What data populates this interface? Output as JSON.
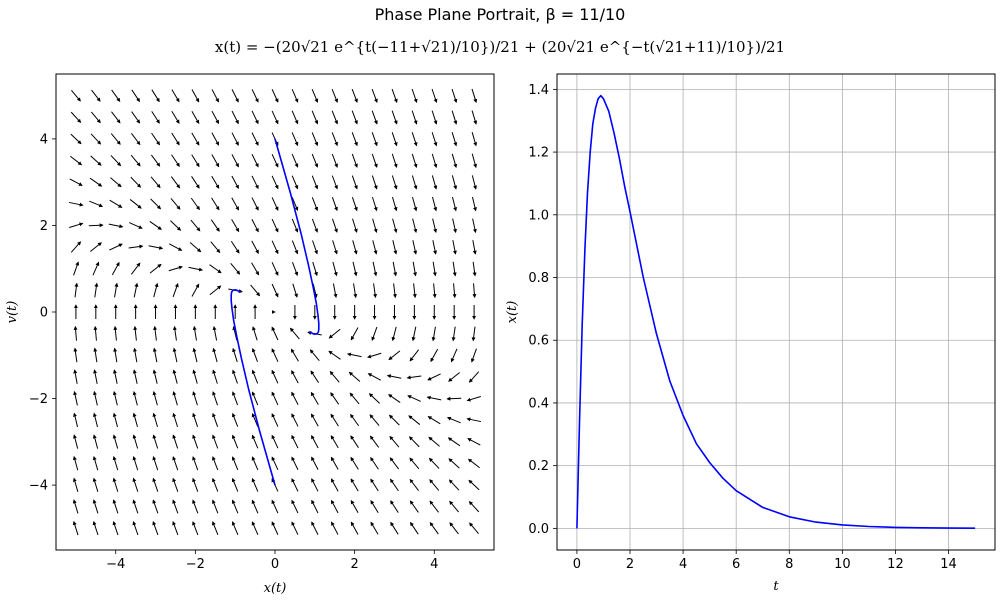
{
  "figure": {
    "title": "Phase Plane Portrait, β = 11/10",
    "subtitle": "x(t) = −(20√21 e^{t(−11+√21)/10})/21 + (20√21 e^{−t(√21+11)/10})/21"
  },
  "chart_data": [
    {
      "type": "quiver",
      "xlabel": "x(t)",
      "ylabel": "v(t)",
      "xlim": [
        -5.5,
        5.5
      ],
      "ylim": [
        -5.5,
        5.5
      ],
      "xticks": [
        -4,
        -2,
        0,
        2,
        4
      ],
      "yticks": [
        -4,
        -2,
        0,
        2,
        4
      ],
      "grid": false,
      "vector_field": {
        "equation": "x' = v, v' = -2.2 v - x",
        "x_range": [
          -5,
          5
        ],
        "y_range": [
          -5,
          5
        ],
        "n": 21,
        "color": "#000000"
      },
      "series": [
        {
          "color": "#0000ff",
          "x": [
            0,
            0.39,
            0.66,
            0.84,
            0.96,
            1.04,
            1.08,
            1.1,
            1.1,
            1.09,
            1.06,
            1.03,
            0.99,
            0.95,
            0.91,
            0.86
          ],
          "y": [
            4,
            2.74,
            1.79,
            1.09,
            0.57,
            0.19,
            -0.08,
            -0.26,
            -0.39,
            -0.46,
            -0.5,
            -0.51,
            -0.51,
            -0.5,
            -0.48,
            -0.46
          ]
        },
        {
          "color": "#0000ff",
          "x": [
            0,
            -0.39,
            -0.66,
            -0.84,
            -0.96,
            -1.04,
            -1.08,
            -1.1,
            -1.1,
            -1.09,
            -1.06,
            -1.03,
            -0.99,
            -0.95,
            -0.91,
            -0.86
          ],
          "y": [
            -4,
            -2.74,
            -1.79,
            -1.09,
            -0.57,
            -0.19,
            0.08,
            0.26,
            0.39,
            0.46,
            0.5,
            0.51,
            0.51,
            0.5,
            0.48,
            0.46
          ]
        }
      ]
    },
    {
      "type": "line",
      "xlabel": "t",
      "ylabel": "x(t)",
      "xlim": [
        -0.75,
        15.75
      ],
      "ylim": [
        -0.069,
        1.449
      ],
      "xticks": [
        0,
        2,
        4,
        6,
        8,
        10,
        12,
        14
      ],
      "yticks": [
        0.0,
        0.2,
        0.4,
        0.6,
        0.8,
        1.0,
        1.2,
        1.4
      ],
      "ytick_labels": [
        "0.0",
        "0.2",
        "0.4",
        "0.6",
        "0.8",
        "1.0",
        "1.2",
        "1.4"
      ],
      "grid": true,
      "series": [
        {
          "color": "#0000ff",
          "x": [
            0,
            0.1,
            0.2,
            0.3,
            0.4,
            0.5,
            0.6,
            0.7,
            0.8,
            0.9,
            1.0,
            1.2,
            1.4,
            1.6,
            1.8,
            2.0,
            2.5,
            3.0,
            3.5,
            4.0,
            4.5,
            5.0,
            5.5,
            6.0,
            7.0,
            8.0,
            9.0,
            10.0,
            11.0,
            12.0,
            13.0,
            14.0,
            15.0
          ],
          "y": [
            0,
            0.35,
            0.65,
            0.89,
            1.07,
            1.2,
            1.29,
            1.34,
            1.37,
            1.38,
            1.37,
            1.33,
            1.26,
            1.18,
            1.09,
            1.01,
            0.8,
            0.62,
            0.47,
            0.36,
            0.27,
            0.21,
            0.16,
            0.12,
            0.067,
            0.037,
            0.02,
            0.011,
            0.006,
            0.003,
            0.0018,
            0.001,
            0.0005
          ]
        }
      ]
    }
  ]
}
